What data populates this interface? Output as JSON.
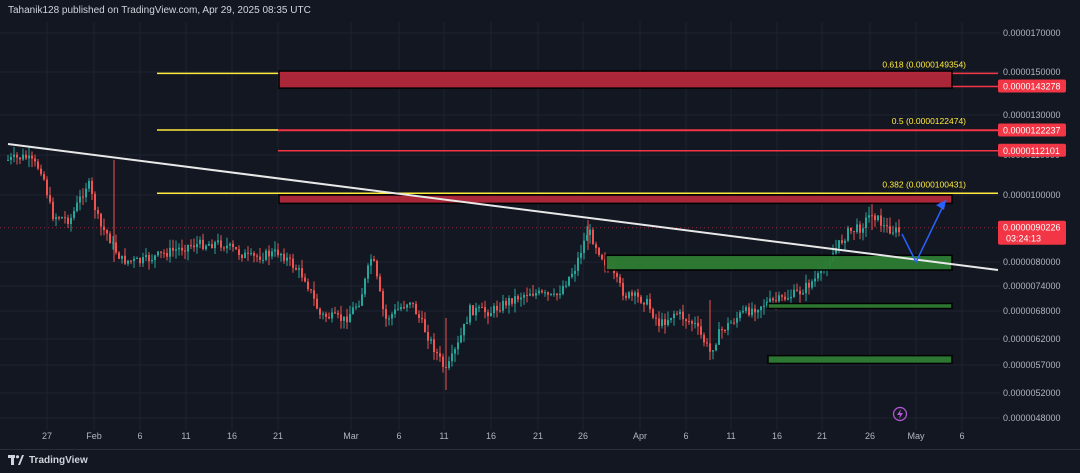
{
  "header": {
    "publish_text": "Tahanik128 published on TradingView.com, Apr 29, 2025 08:35 UTC"
  },
  "footer": {
    "brand": "TradingView"
  },
  "price_axis": {
    "labels": [
      {
        "text": "0.0000170000",
        "v": 170
      },
      {
        "text": "0.0000150000",
        "v": 150
      },
      {
        "text": "0.0000130000",
        "v": 130
      },
      {
        "text": "0.0000110000",
        "v": 110
      },
      {
        "text": "0.0000100000",
        "v": 100
      },
      {
        "text": "0.0000080000",
        "v": 80
      },
      {
        "text": "0.0000074000",
        "v": 74
      },
      {
        "text": "0.0000068000",
        "v": 68
      },
      {
        "text": "0.0000062000",
        "v": 62
      },
      {
        "text": "0.0000057000",
        "v": 57
      },
      {
        "text": "0.0000052000",
        "v": 52
      },
      {
        "text": "0.0000048000",
        "v": 48
      }
    ],
    "badges": [
      {
        "text": "0.0000143278",
        "v": 143.278,
        "color": "#f23645"
      },
      {
        "text": "0.0000122237",
        "v": 122.237,
        "color": "#f23645"
      },
      {
        "text": "0.0000112101",
        "v": 112.101,
        "color": "#f23645"
      }
    ],
    "current_price": {
      "text": "0.0000090226",
      "countdown": "03:24:13",
      "v": 90.226,
      "color": "#f23645"
    }
  },
  "time_axis": {
    "labels": [
      "27",
      "Feb",
      "6",
      "11",
      "16",
      "21",
      "Mar",
      "6",
      "11",
      "16",
      "21",
      "26",
      "Apr",
      "6",
      "11",
      "16",
      "21",
      "26",
      "May",
      "6"
    ]
  },
  "fib_levels": [
    {
      "label": "0.618 (0.0000149354)",
      "v": 149.354,
      "color": "#ffeb3b"
    },
    {
      "label": "0.5 (0.0000122474)",
      "v": 122.474,
      "color": "#ffeb3b"
    },
    {
      "label": "0.382 (0.0000100431)",
      "v": 100.431,
      "color": "#ffeb3b"
    }
  ],
  "resistance_lines": [
    {
      "v": 122.237,
      "color": "#f23645"
    },
    {
      "v": 112.101,
      "color": "#f23645"
    }
  ],
  "zones": [
    {
      "kind": "resistance",
      "top": 150.5,
      "bottom": 142.5,
      "color": "#b2283b"
    },
    {
      "kind": "resistance",
      "top": 100.0,
      "bottom": 97.5,
      "color": "#b2283b"
    },
    {
      "kind": "support",
      "top": 82.0,
      "bottom": 78.0,
      "color": "#2e7d32"
    },
    {
      "kind": "support",
      "top": 69.8,
      "bottom": 68.6,
      "color": "#2e7d32"
    },
    {
      "kind": "support",
      "top": 58.8,
      "bottom": 57.3,
      "color": "#2e7d32"
    }
  ],
  "trendline": {
    "color": "#e8e8e8"
  },
  "projection": {
    "color": "#2962ff"
  },
  "colors": {
    "background": "#131722",
    "up": "#26a69a",
    "down": "#ef5350",
    "grid": "#1f2330"
  }
}
